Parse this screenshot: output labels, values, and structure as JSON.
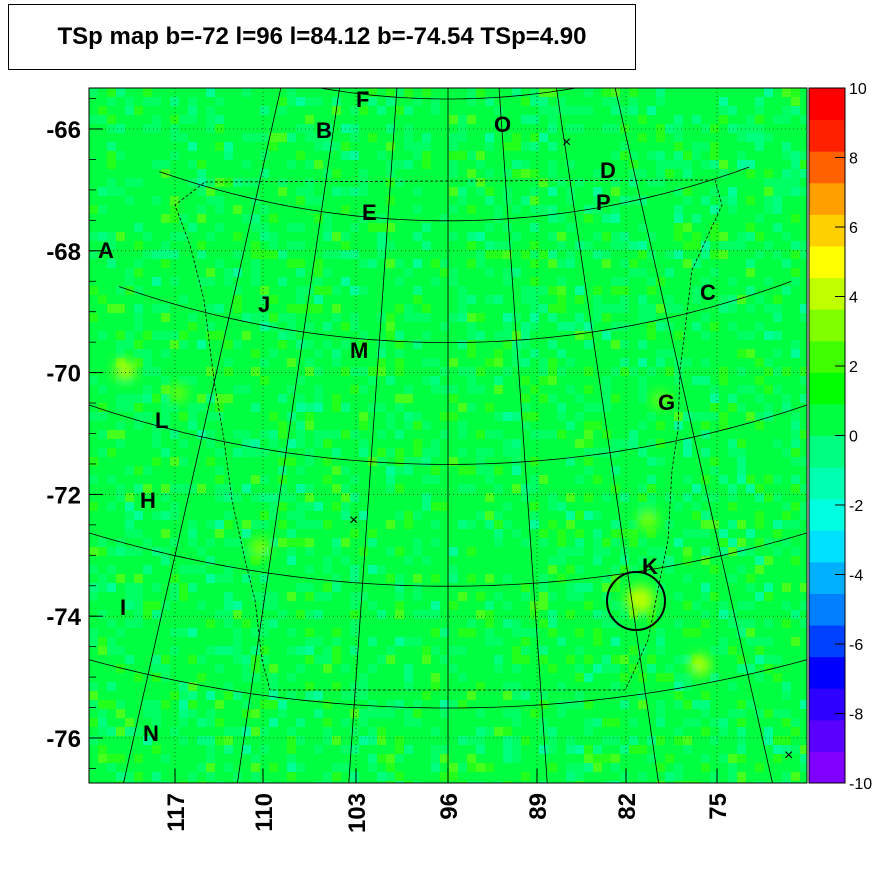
{
  "title": "TSp map b=-72 l=96 l=84.12 b=-74.54 TSp=4.90",
  "chart_data": {
    "type": "heatmap",
    "title": "TSp map b=-72 l=96 l=84.12 b=-74.54 TSp=4.90",
    "xlabel": "",
    "ylabel": "",
    "y_ticks": [
      -66,
      -68,
      -70,
      -72,
      -74,
      -76
    ],
    "x_ticks": [
      117,
      110,
      103,
      96,
      89,
      82,
      75
    ],
    "ylim": [
      -76.6,
      -65.3
    ],
    "colorbar": {
      "ticks": [
        10,
        8,
        6,
        4,
        2,
        0,
        -2,
        -4,
        -6,
        -8,
        -10
      ],
      "range": [
        -10,
        10
      ],
      "colors": [
        "#7f00ff",
        "#5a00ff",
        "#2d00ff",
        "#0000ff",
        "#0040ff",
        "#0080ff",
        "#00b0ff",
        "#00e0ff",
        "#00ffe0",
        "#00ffb0",
        "#00ff80",
        "#00ff40",
        "#00ff00",
        "#40ff00",
        "#80ff00",
        "#c0ff00",
        "#ffff00",
        "#ffd000",
        "#ffa000",
        "#ff6000",
        "#ff2000",
        "#ff0000"
      ]
    },
    "sources": [
      {
        "label": "A",
        "l": 121.5,
        "b": -68.0
      },
      {
        "label": "B",
        "l": 106.5,
        "b": -66.2
      },
      {
        "label": "C",
        "l": 76.8,
        "b": -68.8
      },
      {
        "label": "D",
        "l": 84.1,
        "b": -66.8
      },
      {
        "label": "E",
        "l": 103.0,
        "b": -67.4
      },
      {
        "label": "F",
        "l": 102.5,
        "b": -65.5
      },
      {
        "label": "G",
        "l": 80.1,
        "b": -70.6
      },
      {
        "label": "H",
        "l": 117.5,
        "b": -72.2
      },
      {
        "label": "I",
        "l": 118.5,
        "b": -74.0
      },
      {
        "label": "J",
        "l": 110.0,
        "b": -68.9
      },
      {
        "label": "K",
        "l": 81.3,
        "b": -73.3
      },
      {
        "label": "L",
        "l": 116.5,
        "b": -70.9
      },
      {
        "label": "M",
        "l": 102.0,
        "b": -69.6
      },
      {
        "label": "N",
        "l": 116.0,
        "b": -75.9
      },
      {
        "label": "O",
        "l": 91.5,
        "b": -66.0
      },
      {
        "label": "P",
        "l": 84.5,
        "b": -67.2
      }
    ],
    "best_fit": {
      "l": 84.12,
      "b": -74.54,
      "TSp": 4.9
    }
  },
  "colors": {
    "background_green": "#00ff40",
    "axis": "#000000"
  }
}
